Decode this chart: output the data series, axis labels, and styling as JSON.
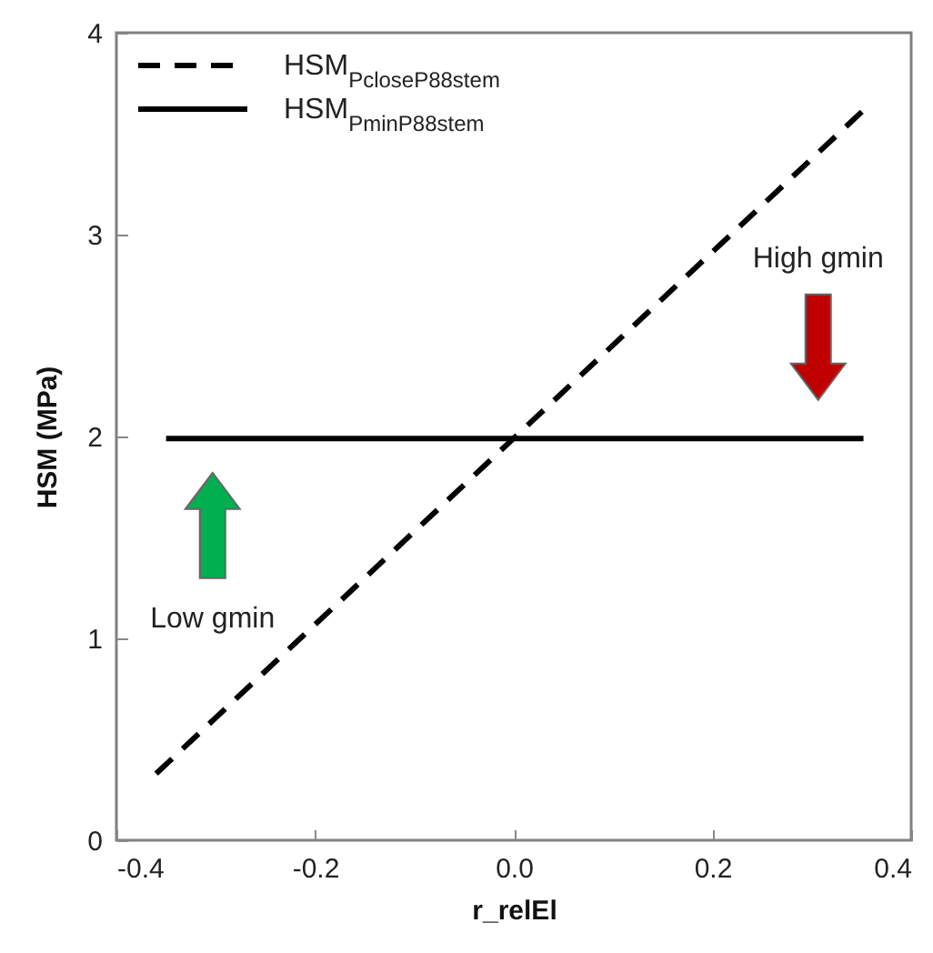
{
  "chart_data": {
    "type": "line",
    "xlabel": "r_relEl",
    "ylabel": "HSM (MPa)",
    "xlim": [
      -0.4,
      0.4
    ],
    "xticks": [
      -0.4,
      -0.2,
      {
        "value": 0,
        "label": "0.0"
      },
      0.2,
      0.4
    ],
    "ylim": [
      0,
      4
    ],
    "yticks": [
      0,
      1,
      2,
      3,
      4
    ],
    "grid": false,
    "legend": "top left",
    "marker": "none",
    "series": [
      {
        "name": "HSM$_{PcloseP88stem}$",
        "color": "#000000",
        "line_style": "dashed",
        "x": [
          -0.36,
          0.355
        ],
        "values": [
          0.33,
          3.63
        ]
      },
      {
        "name": "HSM$_{PminP88stem}$",
        "color": "#000000",
        "line_style": "solid",
        "x": [
          -0.35,
          0.352
        ],
        "values": [
          1.99,
          1.99
        ]
      }
    ],
    "annotations": [
      "Low gmin",
      "High gmin"
    ]
  }
}
